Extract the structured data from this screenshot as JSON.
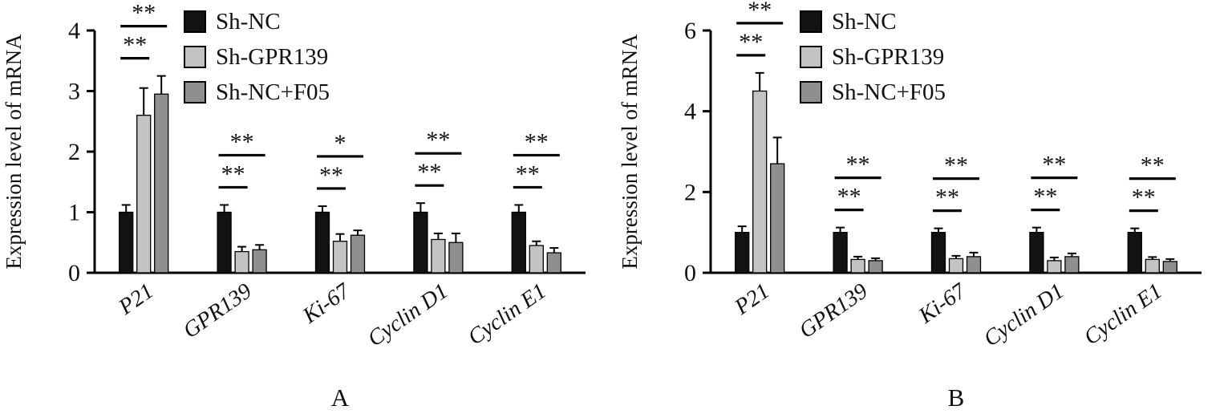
{
  "figure": {
    "description_visible_text": "",
    "panel_count": 2
  },
  "chart_data": [
    {
      "type": "bar",
      "panel_label": "A",
      "title": "",
      "ylabel": "Expression level of mRNA",
      "xlabel": "",
      "categories": [
        "P21",
        "GPR139",
        "Ki-67",
        "Cyclin D1",
        "Cyclin E1"
      ],
      "ylim": [
        0,
        4
      ],
      "yticks": [
        0,
        1,
        2,
        3,
        4
      ],
      "grid": false,
      "legend_position": "top-left-inside",
      "series": [
        {
          "name": "Sh-NC",
          "color": "#121212",
          "values": [
            1.0,
            1.0,
            1.0,
            1.0,
            1.0
          ],
          "errors": [
            0.12,
            0.12,
            0.1,
            0.15,
            0.12
          ]
        },
        {
          "name": "Sh-GPR139",
          "color": "#c3c3c3",
          "values": [
            2.6,
            0.35,
            0.52,
            0.55,
            0.45
          ],
          "errors": [
            0.45,
            0.08,
            0.12,
            0.1,
            0.07
          ]
        },
        {
          "name": "Sh-NC+F05",
          "color": "#8f8f8f",
          "values": [
            2.95,
            0.38,
            0.62,
            0.5,
            0.33
          ],
          "errors": [
            0.3,
            0.08,
            0.08,
            0.15,
            0.08
          ]
        }
      ],
      "significance": [
        {
          "category": "P21",
          "lower": "**",
          "upper": "**"
        },
        {
          "category": "GPR139",
          "lower": "**",
          "upper": "**"
        },
        {
          "category": "Ki-67",
          "lower": "**",
          "upper": "*"
        },
        {
          "category": "Cyclin D1",
          "lower": "**",
          "upper": "**"
        },
        {
          "category": "Cyclin E1",
          "lower": "**",
          "upper": "**"
        }
      ]
    },
    {
      "type": "bar",
      "panel_label": "B",
      "title": "",
      "ylabel": "Expression level of mRNA",
      "xlabel": "",
      "categories": [
        "P21",
        "GPR139",
        "Ki-67",
        "Cyclin D1",
        "Cyclin E1"
      ],
      "ylim": [
        0,
        6
      ],
      "yticks": [
        0,
        2,
        4,
        6
      ],
      "grid": false,
      "legend_position": "top-left-inside",
      "series": [
        {
          "name": "Sh-NC",
          "color": "#121212",
          "values": [
            1.0,
            1.0,
            1.0,
            1.0,
            1.0
          ],
          "errors": [
            0.15,
            0.12,
            0.1,
            0.12,
            0.1
          ]
        },
        {
          "name": "Sh-GPR139",
          "color": "#c3c3c3",
          "values": [
            4.5,
            0.33,
            0.35,
            0.3,
            0.33
          ],
          "errors": [
            0.45,
            0.07,
            0.07,
            0.08,
            0.06
          ]
        },
        {
          "name": "Sh-NC+F05",
          "color": "#8f8f8f",
          "values": [
            2.7,
            0.3,
            0.4,
            0.4,
            0.28
          ],
          "errors": [
            0.65,
            0.06,
            0.1,
            0.08,
            0.06
          ]
        }
      ],
      "significance": [
        {
          "category": "P21",
          "lower": "**",
          "upper": "**"
        },
        {
          "category": "GPR139",
          "lower": "**",
          "upper": "**"
        },
        {
          "category": "Ki-67",
          "lower": "**",
          "upper": "**"
        },
        {
          "category": "Cyclin D1",
          "lower": "**",
          "upper": "**"
        },
        {
          "category": "Cyclin E1",
          "lower": "**",
          "upper": "**"
        }
      ]
    }
  ]
}
